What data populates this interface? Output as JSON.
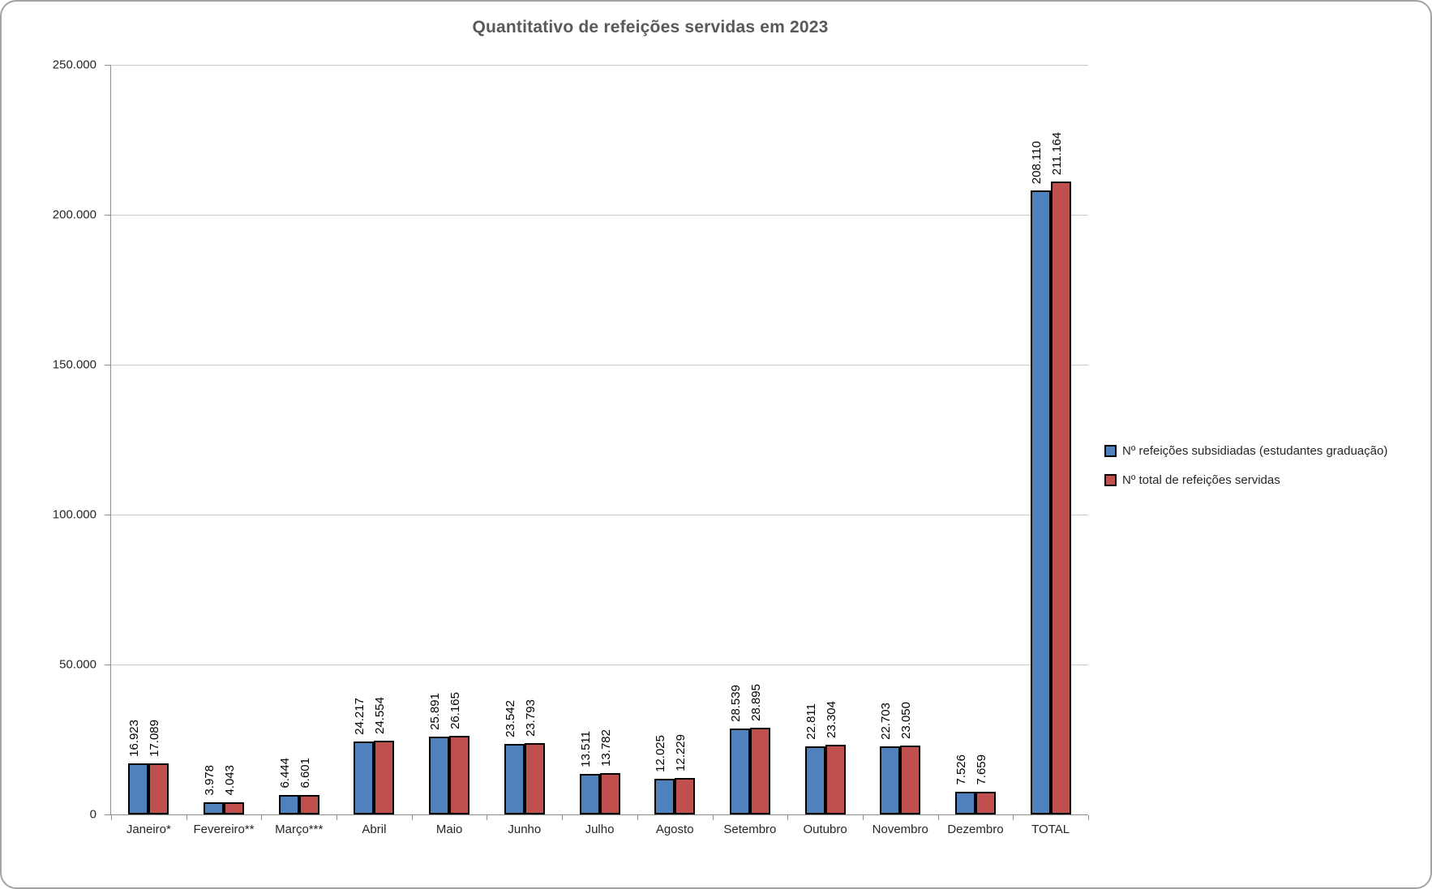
{
  "chart_data": {
    "type": "bar",
    "title": "Quantitativo de refeições servidas em 2023",
    "categories": [
      "Janeiro*",
      "Fevereiro**",
      "Março***",
      "Abril",
      "Maio",
      "Junho",
      "Julho",
      "Agosto",
      "Setembro",
      "Outubro",
      "Novembro",
      "Dezembro",
      "TOTAL"
    ],
    "series": [
      {
        "name": "Nº refeições subsidiadas (estudantes graduação)",
        "color": "#4F81BD",
        "values": [
          16923,
          3978,
          6444,
          24217,
          25891,
          23542,
          13511,
          12025,
          28539,
          22811,
          22703,
          7526,
          208110
        ],
        "labels": [
          "16.923",
          "3.978",
          "6.444",
          "24.217",
          "25.891",
          "23.542",
          "13.511",
          "12.025",
          "28.539",
          "22.811",
          "22.703",
          "7.526",
          "208.110"
        ]
      },
      {
        "name": "Nº total de refeições servidas",
        "color": "#C0504D",
        "values": [
          17089,
          4043,
          6601,
          24554,
          26165,
          23793,
          13782,
          12229,
          28895,
          23304,
          23050,
          7659,
          211164
        ],
        "labels": [
          "17.089",
          "4.043",
          "6.601",
          "24.554",
          "26.165",
          "23.793",
          "13.782",
          "12.229",
          "28.895",
          "23.304",
          "23.050",
          "7.659",
          "211.164"
        ]
      }
    ],
    "y_axis": {
      "min": 0,
      "max": 250000,
      "step": 50000,
      "tick_labels": [
        "250.000",
        "200.000",
        "150.000",
        "100.000",
        "50.000",
        "0"
      ]
    },
    "grid": true,
    "legend_position": "right",
    "bar_border_color": "#000000",
    "gridline_color": "#C9C9C9",
    "axis_color": "#8E8E8E",
    "title_color": "#595959"
  }
}
